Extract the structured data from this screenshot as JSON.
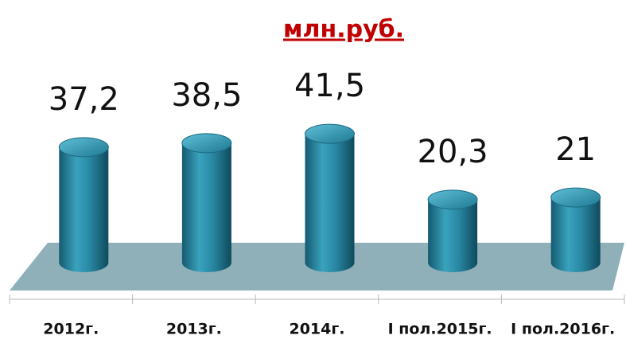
{
  "chart_data": {
    "type": "bar3d",
    "title": "млн.руб.",
    "categories": [
      "2012г.",
      "2013г.",
      "2014г.",
      "I пол.2015г.",
      "I пол.2016г."
    ],
    "values": [
      37.2,
      38.5,
      41.5,
      20.3,
      21
    ],
    "value_labels": [
      "37,2",
      "38,5",
      "41,5",
      "20,3",
      "21"
    ],
    "color": "#2a8aa6"
  }
}
